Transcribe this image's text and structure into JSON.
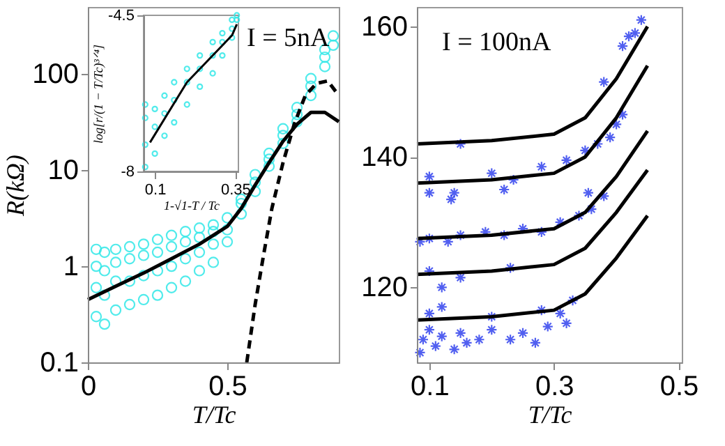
{
  "chart_data": [
    {
      "type": "scatter",
      "xlabel": "T/Tc",
      "ylabel": "R(kΩ)",
      "xlim": [
        0,
        0.9
      ],
      "ylim": [
        0.1,
        500
      ],
      "xticks": [
        0,
        0.5
      ],
      "yticks": [
        0.1,
        1,
        10,
        100
      ],
      "log": "y",
      "grid": false,
      "annotations": [
        "I = 5nA"
      ],
      "series": [
        {
          "marker": "circle",
          "color": "#33e8e8",
          "x": [
            0.03,
            0.03,
            0.03,
            0.03,
            0.06,
            0.06,
            0.06,
            0.06,
            0.1,
            0.1,
            0.1,
            0.1,
            0.15,
            0.15,
            0.15,
            0.15,
            0.2,
            0.2,
            0.2,
            0.2,
            0.25,
            0.25,
            0.25,
            0.25,
            0.3,
            0.3,
            0.3,
            0.3,
            0.35,
            0.35,
            0.35,
            0.35,
            0.4,
            0.4,
            0.4,
            0.4,
            0.45,
            0.45,
            0.45,
            0.45,
            0.5,
            0.5,
            0.5,
            0.55,
            0.55,
            0.55,
            0.6,
            0.6,
            0.6,
            0.65,
            0.65,
            0.65,
            0.7,
            0.7,
            0.7,
            0.75,
            0.75,
            0.75,
            0.8,
            0.8,
            0.8,
            0.85,
            0.85,
            0.85,
            0.88,
            0.88
          ],
          "values": [
            0.3,
            0.6,
            1.0,
            1.5,
            0.25,
            0.5,
            0.9,
            1.4,
            0.35,
            0.7,
            1.1,
            1.5,
            0.4,
            0.7,
            1.2,
            1.6,
            0.45,
            0.8,
            1.3,
            1.7,
            0.5,
            0.9,
            1.4,
            1.9,
            0.6,
            1.0,
            1.6,
            2.1,
            0.7,
            1.2,
            1.8,
            2.3,
            0.9,
            1.4,
            2.0,
            2.5,
            1.1,
            1.7,
            2.3,
            2.7,
            1.8,
            2.4,
            3.2,
            3.5,
            4.5,
            5,
            6,
            7.5,
            9,
            11,
            13,
            15,
            19,
            23,
            27,
            32,
            38,
            45,
            60,
            75,
            90,
            120,
            150,
            180,
            200,
            250
          ]
        },
        {
          "type": "line",
          "line_style": "solid",
          "color": "#000000",
          "x": [
            0,
            0.1,
            0.2,
            0.3,
            0.4,
            0.5,
            0.55,
            0.6,
            0.65,
            0.7,
            0.75,
            0.8,
            0.85,
            0.9
          ],
          "values": [
            0.45,
            0.62,
            0.85,
            1.2,
            1.7,
            2.6,
            4,
            7,
            12,
            20,
            30,
            40,
            40,
            32
          ]
        },
        {
          "type": "line",
          "line_style": "dashed",
          "color": "#000000",
          "x": [
            0.57,
            0.6,
            0.63,
            0.66,
            0.7,
            0.74,
            0.78,
            0.82,
            0.86,
            0.9
          ],
          "values": [
            0.1,
            0.4,
            1.3,
            4,
            12,
            30,
            60,
            80,
            85,
            60
          ]
        }
      ]
    },
    {
      "type": "scatter",
      "xlabel": "1-√1-T / Tc",
      "ylabel": "log[r/(1 − T/Tc)³ᐟ⁴]",
      "xlim": [
        0.065,
        0.36
      ],
      "ylim": [
        -8,
        -4.5
      ],
      "xticks": [
        0.1,
        0.35
      ],
      "yticks": [
        -8,
        -4.5
      ],
      "grid": false,
      "series": [
        {
          "marker": "circle",
          "color": "#33e8e8",
          "x": [
            0.07,
            0.07,
            0.07,
            0.07,
            0.1,
            0.1,
            0.1,
            0.13,
            0.13,
            0.13,
            0.16,
            0.16,
            0.16,
            0.2,
            0.2,
            0.2,
            0.24,
            0.24,
            0.24,
            0.28,
            0.28,
            0.28,
            0.31,
            0.31,
            0.31,
            0.34,
            0.34,
            0.34,
            0.355,
            0.355
          ],
          "values": [
            -7.9,
            -7.4,
            -6.8,
            -6.5,
            -7.6,
            -7.0,
            -6.6,
            -7.2,
            -6.7,
            -6.3,
            -6.9,
            -6.4,
            -6.0,
            -6.5,
            -6.0,
            -5.7,
            -6.1,
            -5.7,
            -5.4,
            -5.8,
            -5.4,
            -5.1,
            -5.4,
            -5.1,
            -4.9,
            -5.0,
            -4.8,
            -4.6,
            -4.6,
            -4.5
          ]
        },
        {
          "type": "line",
          "line_style": "solid",
          "color": "#000000",
          "x": [
            0.085,
            0.2,
            0.3,
            0.34,
            0.355
          ],
          "values": [
            -7.35,
            -6.0,
            -5.25,
            -4.95,
            -4.7
          ]
        }
      ]
    },
    {
      "type": "scatter",
      "xlabel": "T/Tc",
      "xlim": [
        0.08,
        0.505
      ],
      "ylim": [
        108.5,
        163
      ],
      "xticks": [
        0.1,
        0.3,
        0.5
      ],
      "yticks": [
        120,
        140,
        160
      ],
      "grid": false,
      "annotations": [
        "I = 100nA"
      ],
      "series": [
        {
          "marker": "cross",
          "color": "#3344ee",
          "x": [
            0.085,
            0.09,
            0.1,
            0.11,
            0.12,
            0.14,
            0.15,
            0.16,
            0.18,
            0.2,
            0.23,
            0.25,
            0.27,
            0.29,
            0.31,
            0.33,
            0.32,
            0.12,
            0.1,
            0.2,
            0.28,
            0.1,
            0.12,
            0.15,
            0.23,
            0.085,
            0.1,
            0.13,
            0.15,
            0.19,
            0.22,
            0.25,
            0.28,
            0.31,
            0.34,
            0.36,
            0.38,
            0.1,
            0.14,
            0.135,
            0.1,
            0.22,
            0.355,
            0.235,
            0.2,
            0.28,
            0.32,
            0.35,
            0.37,
            0.39,
            0.4,
            0.41,
            0.15,
            0.38,
            0.41,
            0.42,
            0.43,
            0.44
          ],
          "values": [
            110,
            112,
            113.5,
            111,
            112.5,
            110.5,
            113,
            111.5,
            112,
            113.5,
            112,
            113,
            111.5,
            114,
            116,
            118,
            114.5,
            117,
            116,
            115.5,
            116.5,
            122.5,
            120,
            121.5,
            123,
            127,
            127.5,
            127,
            128,
            128.5,
            128,
            129,
            128.5,
            130,
            131,
            132,
            134,
            134.5,
            134.5,
            133.5,
            137,
            135,
            134.5,
            136.5,
            137.5,
            138.5,
            139.5,
            141,
            142,
            143,
            145,
            146.5,
            142,
            151.5,
            157,
            158.5,
            159,
            161
          ]
        },
        {
          "type": "line",
          "line_style": "solid",
          "color": "#000000",
          "x": [
            0.08,
            0.2,
            0.3,
            0.35,
            0.4,
            0.45
          ],
          "values": [
            142,
            142.5,
            143.5,
            146,
            152,
            160
          ]
        },
        {
          "type": "line",
          "line_style": "solid",
          "color": "#000000",
          "x": [
            0.08,
            0.2,
            0.3,
            0.35,
            0.4,
            0.45
          ],
          "values": [
            136,
            136.5,
            137.5,
            140,
            146,
            154
          ]
        },
        {
          "type": "line",
          "line_style": "solid",
          "color": "#000000",
          "x": [
            0.08,
            0.2,
            0.3,
            0.35,
            0.4,
            0.45
          ],
          "values": [
            127.5,
            128,
            129,
            131.5,
            137,
            144
          ]
        },
        {
          "type": "line",
          "line_style": "solid",
          "color": "#000000",
          "x": [
            0.08,
            0.2,
            0.3,
            0.35,
            0.4,
            0.45
          ],
          "values": [
            122,
            122.5,
            123.5,
            126,
            131.5,
            138
          ]
        },
        {
          "type": "line",
          "line_style": "solid",
          "color": "#000000",
          "x": [
            0.08,
            0.2,
            0.3,
            0.35,
            0.4,
            0.45
          ],
          "values": [
            115,
            115.5,
            116.5,
            119,
            124.5,
            131
          ]
        }
      ]
    }
  ]
}
